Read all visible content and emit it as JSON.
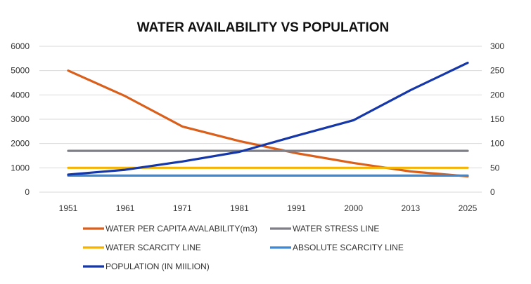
{
  "chart_data": {
    "type": "line",
    "title": "WATER AVAILABILITY VS POPULATION",
    "categories": [
      "1951",
      "1961",
      "1971",
      "1981",
      "1991",
      "2000",
      "2013",
      "2025"
    ],
    "y_left": {
      "ticks": [
        "0",
        "1000",
        "2000",
        "3000",
        "4000",
        "5000",
        "6000"
      ],
      "range": [
        0,
        6000
      ]
    },
    "y_right": {
      "ticks": [
        "0",
        "50",
        "100",
        "150",
        "200",
        "250",
        "300"
      ],
      "range": [
        0,
        300
      ]
    },
    "grid": true,
    "legend_position": "bottom",
    "series": [
      {
        "name": "WATER PER CAPITA AVALABILITY(m3)",
        "axis": "left",
        "color": "#D95F1B",
        "values": [
          5000,
          3950,
          2700,
          2100,
          1600,
          1200,
          850,
          650
        ]
      },
      {
        "name": "WATER STRESS LINE",
        "axis": "left",
        "color": "#7F7F87",
        "values": [
          1700,
          1700,
          1700,
          1700,
          1700,
          1700,
          1700,
          1700
        ]
      },
      {
        "name": "WATER SCARCITY LINE",
        "axis": "left",
        "color": "#F4B400",
        "values": [
          1000,
          1000,
          1000,
          1000,
          1000,
          1000,
          1000,
          1000
        ]
      },
      {
        "name": "ABSOLUTE SCARCITY LINE",
        "axis": "left",
        "color": "#3F88D2",
        "values": [
          680,
          680,
          680,
          680,
          680,
          680,
          680,
          680
        ]
      },
      {
        "name": "POPULATION (IN MIILION)",
        "axis": "right",
        "color": "#1537A8",
        "values": [
          36,
          46,
          63,
          83,
          116,
          148,
          210,
          266
        ]
      }
    ]
  }
}
